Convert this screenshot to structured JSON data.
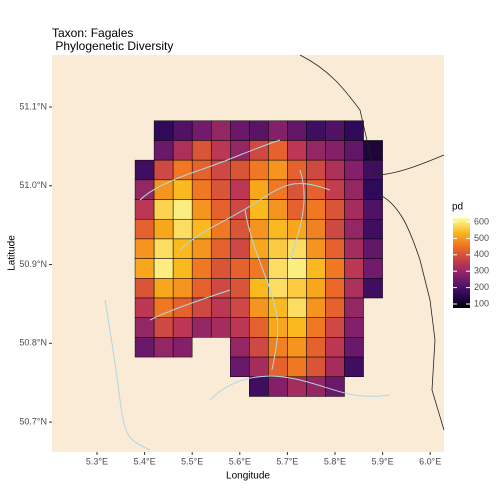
{
  "chart_data": {
    "type": "heatmap",
    "title": "Taxon: Fagales",
    "subtitle": " Phylogenetic Diversity",
    "x_label": "Longitude",
    "y_label": "Latitude",
    "legend_title": "pd",
    "lon": [
      5.4,
      5.44,
      5.48,
      5.52,
      5.56,
      5.6,
      5.64,
      5.68,
      5.72,
      5.76,
      5.8,
      5.84,
      5.88
    ],
    "lat": [
      51.07,
      51.045,
      51.02,
      50.995,
      50.97,
      50.945,
      50.92,
      50.895,
      50.87,
      50.845,
      50.82,
      50.795,
      50.77,
      50.745
    ],
    "values": [
      [
        null,
        180,
        220,
        260,
        300,
        250,
        230,
        280,
        240,
        200,
        220,
        180,
        null
      ],
      [
        null,
        250,
        330,
        400,
        350,
        300,
        380,
        420,
        350,
        300,
        280,
        240,
        150
      ],
      [
        200,
        380,
        450,
        420,
        380,
        400,
        450,
        480,
        420,
        380,
        330,
        280,
        200
      ],
      [
        300,
        480,
        520,
        450,
        400,
        350,
        500,
        450,
        400,
        420,
        360,
        300,
        180
      ],
      [
        350,
        550,
        580,
        480,
        420,
        380,
        520,
        480,
        420,
        450,
        400,
        320,
        220
      ],
      [
        420,
        500,
        560,
        520,
        450,
        400,
        480,
        520,
        500,
        460,
        380,
        300,
        200
      ],
      [
        480,
        560,
        520,
        480,
        420,
        380,
        500,
        540,
        560,
        480,
        420,
        320,
        240
      ],
      [
        500,
        580,
        520,
        450,
        400,
        420,
        450,
        560,
        580,
        520,
        450,
        350,
        260
      ],
      [
        400,
        500,
        480,
        420,
        380,
        400,
        520,
        560,
        540,
        500,
        430,
        330,
        200
      ],
      [
        350,
        450,
        420,
        380,
        350,
        380,
        480,
        520,
        560,
        480,
        420,
        300,
        null
      ],
      [
        300,
        380,
        350,
        300,
        320,
        350,
        420,
        500,
        520,
        450,
        380,
        280,
        null
      ],
      [
        250,
        300,
        280,
        null,
        null,
        300,
        380,
        460,
        480,
        420,
        350,
        250,
        null
      ],
      [
        null,
        null,
        null,
        null,
        null,
        250,
        320,
        420,
        450,
        400,
        320,
        200,
        null
      ],
      [
        null,
        null,
        null,
        null,
        null,
        null,
        200,
        280,
        320,
        300,
        250,
        null,
        null
      ]
    ],
    "cell_width": 0.04,
    "cell_height": 0.025,
    "xlim": [
      5.2055,
      6.029
    ],
    "ylim": [
      50.662,
      51.166
    ],
    "xticks": [
      {
        "value": 5.3,
        "label": "5.3°E"
      },
      {
        "value": 5.4,
        "label": "5.4°E"
      },
      {
        "value": 5.5,
        "label": "5.5°E"
      },
      {
        "value": 5.6,
        "label": "5.6°E"
      },
      {
        "value": 5.7,
        "label": "5.7°E"
      },
      {
        "value": 5.8,
        "label": "5.8°E"
      },
      {
        "value": 5.9,
        "label": "5.9°E"
      },
      {
        "value": 6.0,
        "label": "6.0°E"
      }
    ],
    "yticks": [
      {
        "value": 50.7,
        "label": "50.7°N"
      },
      {
        "value": 50.8,
        "label": "50.8°N"
      },
      {
        "value": 50.9,
        "label": "50.9°N"
      },
      {
        "value": 51.0,
        "label": "51.0°N"
      },
      {
        "value": 51.1,
        "label": "51.1°N"
      }
    ],
    "color_limits": [
      100,
      600
    ],
    "legend_ticks": [
      100,
      200,
      300,
      400,
      500,
      600
    ],
    "colors": [
      "#000004",
      "#320a5e",
      "#781c6d",
      "#bc3754",
      "#ed6925",
      "#fbb61a",
      "#fcffa4"
    ],
    "background": "#faebd7",
    "grid": false
  }
}
